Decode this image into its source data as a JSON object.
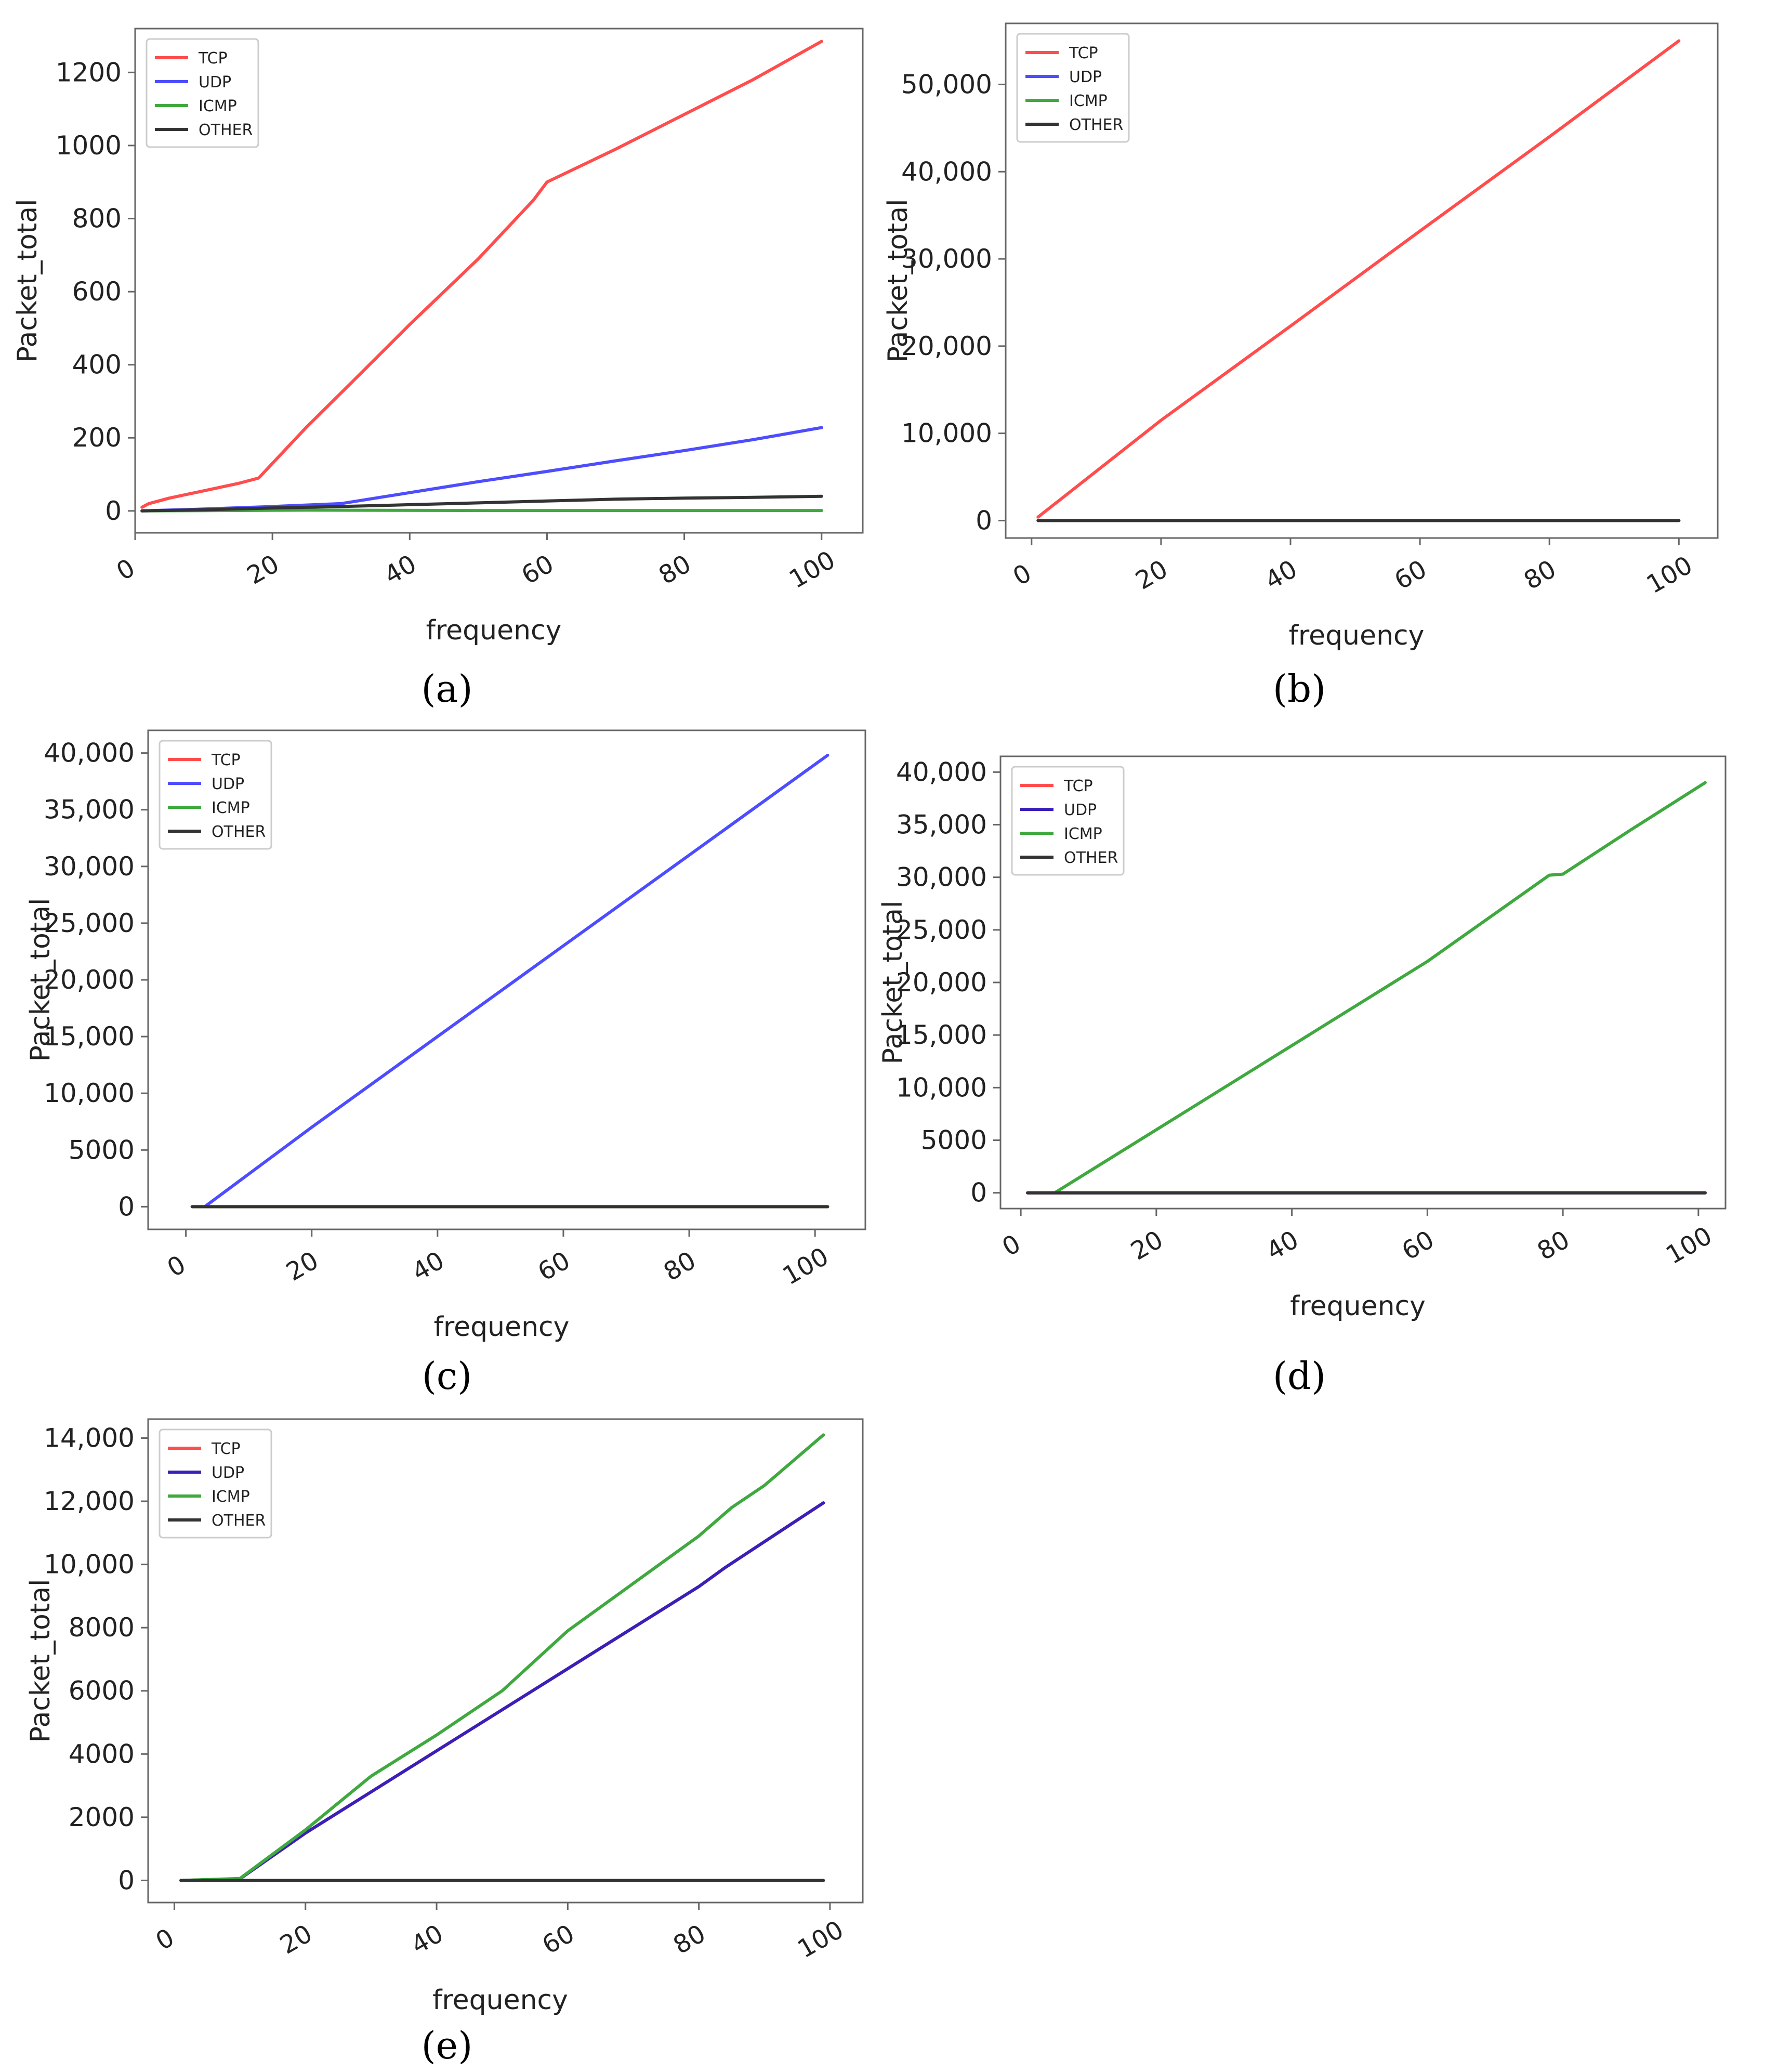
{
  "colors": {
    "tcp": "#ff4d4d",
    "udp": "#4d4dff",
    "udp_dark": "#3a1fb8",
    "icmp": "#3fa93f",
    "other": "#333333"
  },
  "chart_data": [
    {
      "panel": "a",
      "caption": "(a)",
      "type": "line",
      "xlabel": "frequency",
      "ylabel": "Packet_total",
      "xlim": [
        0,
        106
      ],
      "ylim": [
        -60,
        1320
      ],
      "xticks": [
        0,
        20,
        40,
        60,
        80,
        100
      ],
      "xtick_labels": [
        "0",
        "20",
        "40",
        "60",
        "80",
        "100"
      ],
      "yticks": [
        0,
        200,
        400,
        600,
        800,
        1000,
        1200
      ],
      "ytick_labels": [
        "0",
        "200",
        "400",
        "600",
        "800",
        "1000",
        "1200"
      ],
      "legend": [
        "TCP",
        "UDP",
        "ICMP",
        "OTHER"
      ],
      "legend_position": "top-left",
      "series": [
        {
          "name": "TCP",
          "color": "#ff4d4d",
          "x": [
            1,
            2,
            5,
            10,
            15,
            18,
            25,
            32,
            40,
            50,
            58,
            60,
            70,
            80,
            90,
            100
          ],
          "y": [
            10,
            20,
            35,
            55,
            75,
            90,
            230,
            360,
            510,
            690,
            850,
            900,
            990,
            1085,
            1180,
            1285
          ]
        },
        {
          "name": "UDP",
          "color": "#4d4dff",
          "x": [
            1,
            10,
            20,
            30,
            40,
            50,
            60,
            70,
            80,
            90,
            100
          ],
          "y": [
            0,
            5,
            12,
            20,
            50,
            80,
            108,
            137,
            165,
            195,
            228
          ]
        },
        {
          "name": "ICMP",
          "color": "#3fa93f",
          "x": [
            1,
            25,
            50,
            75,
            100
          ],
          "y": [
            0,
            2,
            1,
            1,
            1
          ]
        },
        {
          "name": "OTHER",
          "color": "#333333",
          "x": [
            1,
            10,
            20,
            30,
            40,
            50,
            60,
            70,
            80,
            90,
            100
          ],
          "y": [
            0,
            3,
            8,
            12,
            17,
            22,
            27,
            32,
            35,
            37,
            40
          ]
        }
      ]
    },
    {
      "panel": "b",
      "caption": "(b)",
      "type": "line",
      "xlabel": "frequency",
      "ylabel": "Packet_total",
      "xlim": [
        -4,
        106
      ],
      "ylim": [
        -2000,
        57000
      ],
      "xticks": [
        0,
        20,
        40,
        60,
        80,
        100
      ],
      "xtick_labels": [
        "0",
        "20",
        "40",
        "60",
        "80",
        "100"
      ],
      "yticks": [
        0,
        10000,
        20000,
        30000,
        40000,
        50000
      ],
      "ytick_labels": [
        "0",
        "10,000",
        "20,000",
        "30,000",
        "40,000",
        "50,000"
      ],
      "legend": [
        "TCP",
        "UDP",
        "ICMP",
        "OTHER"
      ],
      "legend_position": "top-left",
      "series": [
        {
          "name": "TCP",
          "color": "#ff4d4d",
          "x": [
            1,
            20,
            40,
            60,
            80,
            100
          ],
          "y": [
            400,
            11500,
            22300,
            33200,
            44000,
            55000
          ]
        },
        {
          "name": "UDP",
          "color": "#4d4dff",
          "x": [
            1,
            100
          ],
          "y": [
            0,
            0
          ]
        },
        {
          "name": "ICMP",
          "color": "#3fa93f",
          "x": [
            1,
            100
          ],
          "y": [
            0,
            0
          ]
        },
        {
          "name": "OTHER",
          "color": "#333333",
          "x": [
            1,
            100
          ],
          "y": [
            0,
            0
          ]
        }
      ]
    },
    {
      "panel": "c",
      "caption": "(c)",
      "type": "line",
      "xlabel": "frequency",
      "ylabel": "Packet_total",
      "xlim": [
        -6,
        108
      ],
      "ylim": [
        -2000,
        42000
      ],
      "xticks": [
        0,
        20,
        40,
        60,
        80,
        100
      ],
      "xtick_labels": [
        "0",
        "20",
        "40",
        "60",
        "80",
        "100"
      ],
      "yticks": [
        0,
        5000,
        10000,
        15000,
        20000,
        25000,
        30000,
        35000,
        40000
      ],
      "ytick_labels": [
        "0",
        "5000",
        "10,000",
        "15,000",
        "20,000",
        "25,000",
        "30,000",
        "35,000",
        "40,000"
      ],
      "legend": [
        "TCP",
        "UDP",
        "ICMP",
        "OTHER"
      ],
      "legend_position": "top-left",
      "series": [
        {
          "name": "TCP",
          "color": "#ff4d4d",
          "x": [
            1,
            102
          ],
          "y": [
            0,
            0
          ]
        },
        {
          "name": "UDP",
          "color": "#4d4dff",
          "x": [
            3,
            20,
            40,
            60,
            80,
            102
          ],
          "y": [
            0,
            7000,
            15000,
            23000,
            31000,
            39800
          ]
        },
        {
          "name": "ICMP",
          "color": "#3fa93f",
          "x": [
            1,
            102
          ],
          "y": [
            0,
            0
          ]
        },
        {
          "name": "OTHER",
          "color": "#333333",
          "x": [
            1,
            102
          ],
          "y": [
            0,
            0
          ]
        }
      ]
    },
    {
      "panel": "d",
      "caption": "(d)",
      "type": "line",
      "xlabel": "frequency",
      "ylabel": "Packet_total",
      "xlim": [
        -3,
        104
      ],
      "ylim": [
        -1500,
        41500
      ],
      "xticks": [
        0,
        20,
        40,
        60,
        80,
        100
      ],
      "xtick_labels": [
        "0",
        "20",
        "40",
        "60",
        "80",
        "100"
      ],
      "yticks": [
        0,
        5000,
        10000,
        15000,
        20000,
        25000,
        30000,
        35000,
        40000
      ],
      "ytick_labels": [
        "0",
        "5000",
        "10,000",
        "15,000",
        "20,000",
        "25,000",
        "30,000",
        "35,000",
        "40,000"
      ],
      "legend": [
        "TCP",
        "UDP",
        "ICMP",
        "OTHER"
      ],
      "legend_position": "top-left",
      "series": [
        {
          "name": "TCP",
          "color": "#ff4d4d",
          "x": [
            1,
            101
          ],
          "y": [
            0,
            0
          ]
        },
        {
          "name": "UDP",
          "color": "#3a1fb8",
          "x": [
            1,
            101
          ],
          "y": [
            0,
            0
          ]
        },
        {
          "name": "ICMP",
          "color": "#3fa93f",
          "x": [
            5,
            20,
            40,
            60,
            78,
            80,
            90,
            101
          ],
          "y": [
            0,
            6000,
            14000,
            22000,
            30200,
            30300,
            34500,
            39000
          ]
        },
        {
          "name": "OTHER",
          "color": "#333333",
          "x": [
            1,
            101
          ],
          "y": [
            0,
            0
          ]
        }
      ]
    },
    {
      "panel": "e",
      "caption": "(e)",
      "type": "line",
      "xlabel": "frequency",
      "ylabel": "Packet_total",
      "xlim": [
        -4,
        105
      ],
      "ylim": [
        -700,
        14600
      ],
      "xticks": [
        0,
        20,
        40,
        60,
        80,
        100
      ],
      "xtick_labels": [
        "0",
        "20",
        "40",
        "60",
        "80",
        "100"
      ],
      "yticks": [
        0,
        2000,
        4000,
        6000,
        8000,
        10000,
        12000,
        14000
      ],
      "ytick_labels": [
        "0",
        "2000",
        "4000",
        "6000",
        "8000",
        "10,000",
        "12,000",
        "14,000"
      ],
      "legend": [
        "TCP",
        "UDP",
        "ICMP",
        "OTHER"
      ],
      "legend_position": "top-left",
      "series": [
        {
          "name": "TCP",
          "color": "#ff4d4d",
          "x": [
            1,
            10,
            20,
            40,
            60,
            80,
            84,
            99
          ],
          "y": [
            0,
            50,
            1500,
            4100,
            6700,
            9300,
            9900,
            11950
          ]
        },
        {
          "name": "UDP",
          "color": "#3a1fb8",
          "x": [
            1,
            10,
            20,
            40,
            60,
            80,
            84,
            99
          ],
          "y": [
            0,
            50,
            1500,
            4100,
            6700,
            9300,
            9900,
            11950
          ]
        },
        {
          "name": "ICMP",
          "color": "#3fa93f",
          "x": [
            1,
            10,
            20,
            30,
            40,
            50,
            60,
            70,
            80,
            85,
            90,
            99
          ],
          "y": [
            0,
            60,
            1600,
            3300,
            4600,
            6000,
            7900,
            9400,
            10900,
            11800,
            12500,
            14100
          ]
        },
        {
          "name": "OTHER",
          "color": "#333333",
          "x": [
            1,
            99
          ],
          "y": [
            0,
            0
          ]
        }
      ]
    }
  ]
}
